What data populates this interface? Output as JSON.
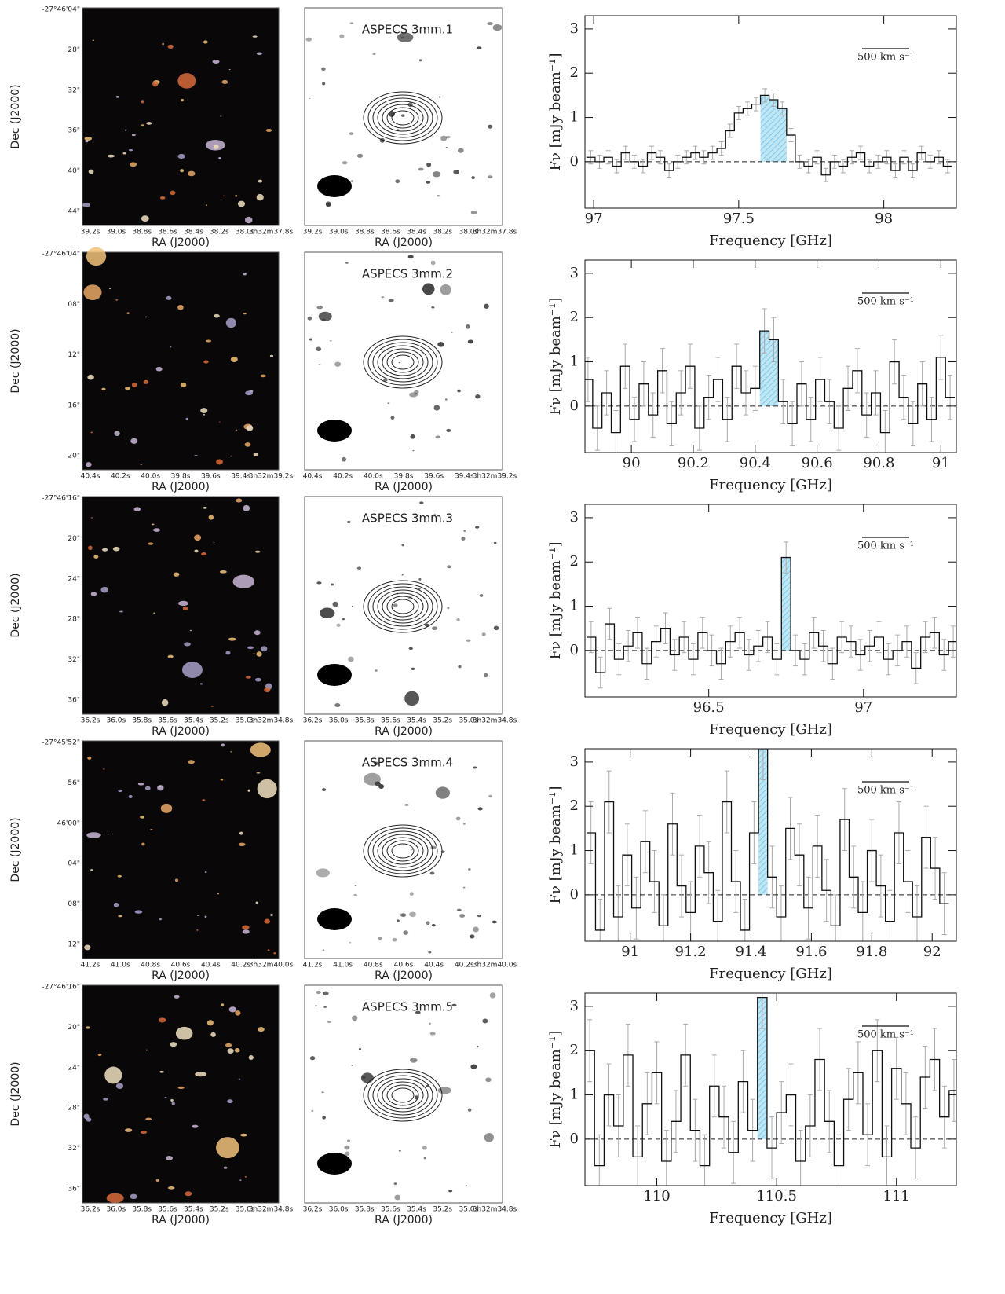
{
  "dec_label": "Dec (J2000)",
  "ra_label": "RA (J2000)",
  "panels": [
    {
      "name": "ASPECS 3mm.1",
      "dec_ticks": [
        "-27°46'04\"",
        "28\"",
        "32\"",
        "36\"",
        "40\"",
        "44\""
      ],
      "ra_ticks": [
        "39.2s",
        "39.0s",
        "38.8s",
        "38.6s",
        "38.4s",
        "38.2s",
        "38.0s",
        "3h32m37.8s"
      ]
    },
    {
      "name": "ASPECS 3mm.2",
      "dec_ticks": [
        "-27°46'04\"",
        "08\"",
        "12\"",
        "16\"",
        "20\""
      ],
      "ra_ticks": [
        "40.4s",
        "40.2s",
        "40.0s",
        "39.8s",
        "39.6s",
        "39.4s",
        "3h32m39.2s"
      ]
    },
    {
      "name": "ASPECS 3mm.3",
      "dec_ticks": [
        "-27°46'16\"",
        "20\"",
        "24\"",
        "28\"",
        "32\"",
        "36\""
      ],
      "ra_ticks": [
        "36.2s",
        "36.0s",
        "35.8s",
        "35.6s",
        "35.4s",
        "35.2s",
        "35.0s",
        "3h32m34.8s"
      ]
    },
    {
      "name": "ASPECS 3mm.4",
      "dec_ticks": [
        "-27°45'52\"",
        "56\"",
        "46'00\"",
        "04\"",
        "08\"",
        "12\""
      ],
      "ra_ticks": [
        "41.2s",
        "41.0s",
        "40.8s",
        "40.6s",
        "40.4s",
        "40.2s",
        "3h32m40.0s"
      ]
    },
    {
      "name": "ASPECS 3mm.5",
      "dec_ticks": [
        "-27°46'16\"",
        "20\"",
        "24\"",
        "28\"",
        "32\"",
        "36\""
      ],
      "ra_ticks": [
        "36.2s",
        "36.0s",
        "35.8s",
        "35.6s",
        "35.4s",
        "35.2s",
        "35.0s",
        "3h32m34.8s"
      ]
    }
  ],
  "chart_data": [
    {
      "type": "line",
      "drawstyle": "steps",
      "color": "#111111",
      "highlight_color": "#8fd0ec",
      "xlabel": "Frequency [GHz]",
      "ylabel": "Fν [mJy beam⁻¹]",
      "annotation": "500 km s⁻¹",
      "xlim": [
        96.97,
        98.25
      ],
      "ylim": [
        -1.05,
        3.3
      ],
      "xticks": [
        97,
        97.5,
        98
      ],
      "yticks": [
        0,
        1,
        2,
        3
      ],
      "highlight": [
        97.575,
        97.665
      ],
      "error": 0.15,
      "x": [
        96.99,
        97.02,
        97.05,
        97.08,
        97.11,
        97.14,
        97.17,
        97.2,
        97.23,
        97.26,
        97.29,
        97.32,
        97.35,
        97.38,
        97.41,
        97.44,
        97.47,
        97.5,
        97.53,
        97.56,
        97.59,
        97.62,
        97.65,
        97.68,
        97.71,
        97.74,
        97.77,
        97.8,
        97.83,
        97.86,
        97.89,
        97.92,
        97.95,
        97.98,
        98.01,
        98.04,
        98.07,
        98.1,
        98.13,
        98.16,
        98.19,
        98.22
      ],
      "values": [
        0.1,
        0.0,
        0.1,
        -0.1,
        0.2,
        0.0,
        -0.1,
        0.2,
        0.1,
        -0.2,
        0.0,
        0.1,
        0.2,
        0.1,
        0.2,
        0.3,
        0.7,
        1.1,
        1.2,
        1.3,
        1.5,
        1.4,
        1.2,
        0.6,
        0.0,
        -0.1,
        0.1,
        -0.3,
        0.0,
        -0.1,
        0.1,
        0.2,
        -0.1,
        0.0,
        0.1,
        -0.2,
        0.1,
        -0.2,
        0.2,
        0.0,
        0.1,
        -0.1
      ]
    },
    {
      "type": "line",
      "drawstyle": "steps",
      "color": "#111111",
      "highlight_color": "#8fd0ec",
      "xlabel": "Frequency [GHz]",
      "ylabel": "Fν [mJy beam⁻¹]",
      "annotation": "500 km s⁻¹",
      "xlim": [
        89.85,
        91.05
      ],
      "ylim": [
        -1.05,
        3.3
      ],
      "xticks": [
        90,
        90.2,
        90.4,
        90.6,
        90.8,
        91
      ],
      "yticks": [
        0,
        1,
        2,
        3
      ],
      "highlight": [
        90.415,
        90.475
      ],
      "error": 0.5,
      "x": [
        89.86,
        89.89,
        89.92,
        89.95,
        89.98,
        90.01,
        90.04,
        90.07,
        90.1,
        90.13,
        90.16,
        90.19,
        90.22,
        90.25,
        90.28,
        90.31,
        90.34,
        90.37,
        90.4,
        90.43,
        90.46,
        90.49,
        90.52,
        90.55,
        90.58,
        90.61,
        90.64,
        90.67,
        90.7,
        90.73,
        90.76,
        90.79,
        90.82,
        90.85,
        90.88,
        90.91,
        90.94,
        90.97,
        91.0,
        91.03
      ],
      "values": [
        0.6,
        -0.5,
        0.3,
        -0.6,
        0.9,
        -0.3,
        0.5,
        -0.2,
        0.8,
        -0.4,
        0.3,
        0.9,
        -0.5,
        0.2,
        0.6,
        -0.3,
        0.9,
        0.3,
        0.4,
        1.7,
        1.5,
        0.1,
        -0.4,
        0.5,
        -0.3,
        0.6,
        0.1,
        -0.5,
        0.4,
        0.8,
        -0.2,
        0.3,
        -0.6,
        1.0,
        0.2,
        -0.4,
        0.5,
        -0.3,
        1.1,
        0.2
      ]
    },
    {
      "type": "line",
      "drawstyle": "steps",
      "color": "#111111",
      "highlight_color": "#8fd0ec",
      "xlabel": "Frequency [GHz]",
      "ylabel": "Fν [mJy beam⁻¹]",
      "annotation": "500 km s⁻¹",
      "xlim": [
        96.1,
        97.3
      ],
      "ylim": [
        -1.05,
        3.3
      ],
      "xticks": [
        96.5,
        97
      ],
      "yticks": [
        0,
        1,
        2,
        3
      ],
      "highlight": [
        96.735,
        96.765
      ],
      "error": 0.35,
      "x": [
        96.12,
        96.15,
        96.18,
        96.21,
        96.24,
        96.27,
        96.3,
        96.33,
        96.36,
        96.39,
        96.42,
        96.45,
        96.48,
        96.51,
        96.54,
        96.57,
        96.6,
        96.63,
        96.66,
        96.69,
        96.72,
        96.75,
        96.78,
        96.81,
        96.84,
        96.87,
        96.9,
        96.93,
        96.96,
        96.99,
        97.02,
        97.05,
        97.08,
        97.11,
        97.14,
        97.17,
        97.2,
        97.23,
        97.26,
        97.29
      ],
      "values": [
        0.3,
        -0.5,
        0.6,
        -0.2,
        0.1,
        0.4,
        -0.3,
        0.2,
        0.5,
        -0.1,
        0.3,
        -0.2,
        0.4,
        0.0,
        -0.3,
        0.2,
        0.4,
        -0.1,
        0.1,
        0.3,
        -0.2,
        2.1,
        0.0,
        -0.2,
        0.4,
        0.1,
        -0.3,
        0.3,
        0.2,
        -0.1,
        0.1,
        0.3,
        -0.2,
        0.0,
        0.2,
        -0.4,
        0.3,
        0.4,
        -0.1,
        0.2
      ]
    },
    {
      "type": "line",
      "drawstyle": "steps",
      "color": "#111111",
      "highlight_color": "#8fd0ec",
      "xlabel": "Frequency [GHz]",
      "ylabel": "Fν [mJy beam⁻¹]",
      "annotation": "500 km s⁻¹",
      "xlim": [
        90.85,
        92.08
      ],
      "ylim": [
        -1.05,
        3.3
      ],
      "xticks": [
        91,
        91.2,
        91.4,
        91.6,
        91.8,
        92
      ],
      "yticks": [
        0,
        1,
        2,
        3
      ],
      "highlight": [
        91.425,
        91.455
      ],
      "error": 0.7,
      "x": [
        90.87,
        90.9,
        90.93,
        90.96,
        90.99,
        91.02,
        91.05,
        91.08,
        91.11,
        91.14,
        91.17,
        91.2,
        91.23,
        91.26,
        91.29,
        91.32,
        91.35,
        91.38,
        91.41,
        91.44,
        91.47,
        91.5,
        91.53,
        91.56,
        91.59,
        91.62,
        91.65,
        91.68,
        91.71,
        91.74,
        91.77,
        91.8,
        91.83,
        91.86,
        91.89,
        91.92,
        91.95,
        91.98,
        92.01,
        92.04
      ],
      "values": [
        1.4,
        -0.8,
        2.1,
        -0.5,
        0.9,
        -0.3,
        1.2,
        0.3,
        -0.7,
        1.6,
        0.2,
        -0.4,
        1.1,
        0.5,
        -0.6,
        2.1,
        0.3,
        -0.8,
        1.4,
        3.3,
        0.4,
        -0.5,
        1.5,
        0.9,
        -0.3,
        1.1,
        0.1,
        -0.7,
        1.7,
        0.4,
        -0.4,
        1.0,
        0.2,
        -0.6,
        1.4,
        0.3,
        -0.5,
        1.3,
        0.6,
        -0.2
      ]
    },
    {
      "type": "line",
      "drawstyle": "steps",
      "color": "#111111",
      "highlight_color": "#8fd0ec",
      "xlabel": "Frequency [GHz]",
      "ylabel": "Fν [mJy beam⁻¹]",
      "annotation": "500 km s⁻¹",
      "xlim": [
        109.7,
        111.25
      ],
      "ylim": [
        -1.05,
        3.3
      ],
      "xticks": [
        110,
        110.5,
        111
      ],
      "yticks": [
        0,
        1,
        2,
        3
      ],
      "highlight": [
        110.42,
        110.46
      ],
      "error": 0.7,
      "x": [
        109.72,
        109.76,
        109.8,
        109.84,
        109.88,
        109.92,
        109.96,
        110.0,
        110.04,
        110.08,
        110.12,
        110.16,
        110.2,
        110.24,
        110.28,
        110.32,
        110.36,
        110.4,
        110.44,
        110.48,
        110.52,
        110.56,
        110.6,
        110.64,
        110.68,
        110.72,
        110.76,
        110.8,
        110.84,
        110.88,
        110.92,
        110.96,
        111.0,
        111.04,
        111.08,
        111.12,
        111.16,
        111.2,
        111.24
      ],
      "values": [
        2.0,
        -0.6,
        1.0,
        0.3,
        1.9,
        -0.4,
        0.8,
        1.5,
        -0.5,
        0.4,
        1.9,
        0.2,
        -0.6,
        1.2,
        0.5,
        -0.3,
        1.3,
        0.2,
        3.2,
        -0.2,
        0.6,
        1.0,
        -0.5,
        0.3,
        1.8,
        0.4,
        -0.6,
        0.9,
        1.5,
        0.1,
        2.0,
        -0.4,
        1.6,
        0.8,
        -0.2,
        1.4,
        1.8,
        0.5,
        1.1
      ]
    }
  ]
}
